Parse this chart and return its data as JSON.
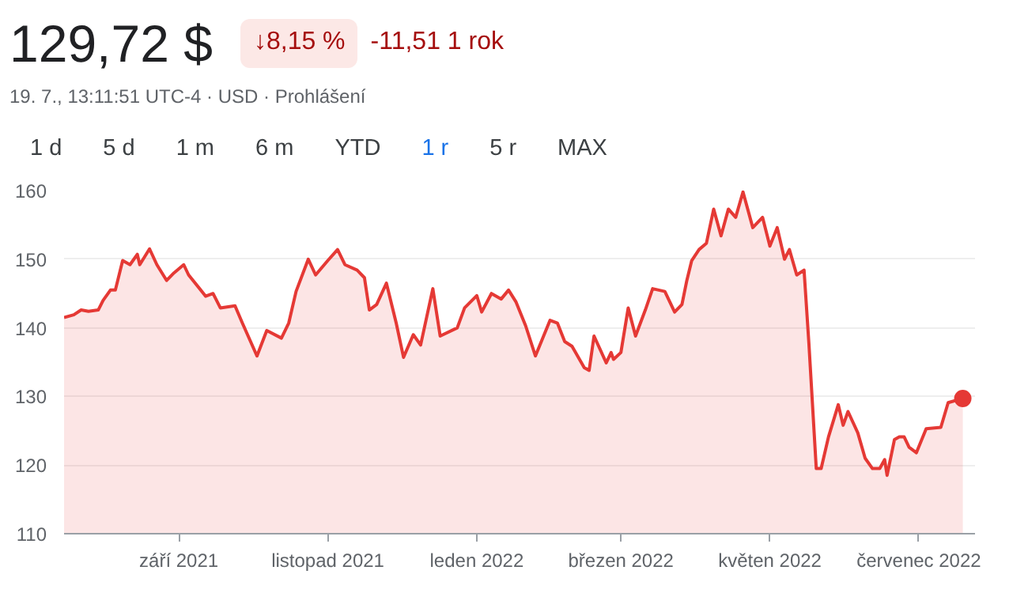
{
  "chart_data": {
    "type": "area",
    "title": "129,72 $",
    "subtitle": "19. 7., 13:11:51 UTC-4 · USD · Prohlášení",
    "annotations": [
      "↓8,15 %",
      "-11,51 1 rok",
      "1 d",
      "5 d",
      "1 m",
      "6 m",
      "YTD",
      "1 r",
      "5 r",
      "MAX"
    ],
    "x": [
      "2021-07-16",
      "2021-07-20",
      "2021-07-23",
      "2021-07-26",
      "2021-07-30",
      "2021-08-01",
      "2021-08-04",
      "2021-08-06",
      "2021-08-09",
      "2021-08-12",
      "2021-08-15",
      "2021-08-16",
      "2021-08-20",
      "2021-08-23",
      "2021-08-27",
      "2021-08-30",
      "2021-09-03",
      "2021-09-05",
      "2021-09-12",
      "2021-09-15",
      "2021-09-18",
      "2021-09-24",
      "2021-09-27",
      "2021-10-03",
      "2021-10-07",
      "2021-10-13",
      "2021-10-16",
      "2021-10-19",
      "2021-10-24",
      "2021-10-27",
      "2021-11-01",
      "2021-11-05",
      "2021-11-08",
      "2021-11-13",
      "2021-11-16",
      "2021-11-18",
      "2021-11-21",
      "2021-11-25",
      "2021-11-29",
      "2021-12-02",
      "2021-12-06",
      "2021-12-09",
      "2021-12-14",
      "2021-12-17",
      "2021-12-24",
      "2021-12-27",
      "2022-01-01",
      "2022-01-03",
      "2022-01-07",
      "2022-01-11",
      "2022-01-14",
      "2022-01-17",
      "2022-01-21",
      "2022-01-25",
      "2022-01-31",
      "2022-02-03",
      "2022-02-06",
      "2022-02-09",
      "2022-02-14",
      "2022-02-16",
      "2022-02-18",
      "2022-02-23",
      "2022-02-25",
      "2022-02-26",
      "2022-03-01",
      "2022-03-04",
      "2022-03-07",
      "2022-03-11",
      "2022-03-14",
      "2022-03-19",
      "2022-03-23",
      "2022-03-26",
      "2022-03-28",
      "2022-03-30",
      "2022-04-02",
      "2022-04-05",
      "2022-04-08",
      "2022-04-11",
      "2022-04-14",
      "2022-04-17",
      "2022-04-20",
      "2022-04-24",
      "2022-04-28",
      "2022-05-01",
      "2022-05-04",
      "2022-05-07",
      "2022-05-09",
      "2022-05-12",
      "2022-05-15",
      "2022-05-17",
      "2022-05-20",
      "2022-05-22",
      "2022-05-25",
      "2022-05-29",
      "2022-05-31",
      "2022-06-02",
      "2022-06-06",
      "2022-06-09",
      "2022-06-12",
      "2022-06-15",
      "2022-06-17",
      "2022-06-18",
      "2022-06-21",
      "2022-06-23",
      "2022-06-25",
      "2022-06-27",
      "2022-06-30",
      "2022-07-04",
      "2022-07-10",
      "2022-07-13",
      "2022-07-19"
    ],
    "series": [
      {
        "color": "#e53935",
        "values": [
          141.5,
          141.9,
          142.6,
          142.4,
          142.6,
          144.0,
          145.5,
          145.5,
          149.8,
          149.2,
          150.7,
          149.2,
          151.5,
          149.2,
          146.9,
          148.0,
          149.2,
          147.7,
          144.6,
          145.0,
          142.9,
          143.2,
          140.7,
          135.9,
          139.6,
          138.5,
          140.7,
          145.3,
          150.0,
          147.7,
          149.8,
          151.4,
          149.2,
          148.4,
          147.3,
          142.6,
          143.4,
          146.5,
          140.7,
          135.7,
          139.0,
          137.5,
          145.7,
          138.8,
          140.0,
          142.9,
          144.7,
          142.3,
          145.0,
          144.2,
          145.5,
          143.8,
          140.3,
          135.9,
          141.1,
          140.7,
          138.0,
          137.3,
          134.2,
          133.8,
          138.8,
          134.9,
          136.4,
          135.4,
          136.4,
          142.9,
          138.8,
          142.6,
          145.7,
          145.3,
          142.3,
          143.4,
          146.9,
          149.8,
          151.4,
          152.3,
          157.3,
          153.4,
          157.3,
          156.1,
          159.8,
          154.6,
          156.1,
          151.9,
          154.6,
          150.0,
          151.4,
          147.7,
          148.4,
          137.6,
          119.5,
          119.5,
          124.1,
          128.8,
          125.8,
          127.8,
          124.7,
          121.0,
          119.5,
          119.5,
          120.8,
          118.5,
          123.7,
          124.1,
          124.1,
          122.6,
          121.8,
          125.3,
          125.5,
          129.1,
          129.7
        ]
      },
      {
        "type": "scatter",
        "marker": "circle",
        "color": "#e53935",
        "x": [
          "2022-07-19"
        ],
        "values": [
          129.7
        ]
      }
    ],
    "xlim": [
      "2021-07-16",
      "2022-07-24"
    ],
    "xticks": [
      {
        "value": "2021-09-01",
        "label": "září 2021"
      },
      {
        "value": "2021-11-01",
        "label": "listopad 2021"
      },
      {
        "value": "2022-01-01",
        "label": "leden 2022"
      },
      {
        "value": "2022-03-01",
        "label": "březen 2022"
      },
      {
        "value": "2022-05-01",
        "label": "květen 2022"
      },
      {
        "value": "2022-07-01",
        "label": "červenec 2022"
      }
    ],
    "ylim": [
      110,
      160
    ],
    "yticks": [
      110,
      120,
      130,
      140,
      150,
      160
    ],
    "grid": "y"
  }
}
